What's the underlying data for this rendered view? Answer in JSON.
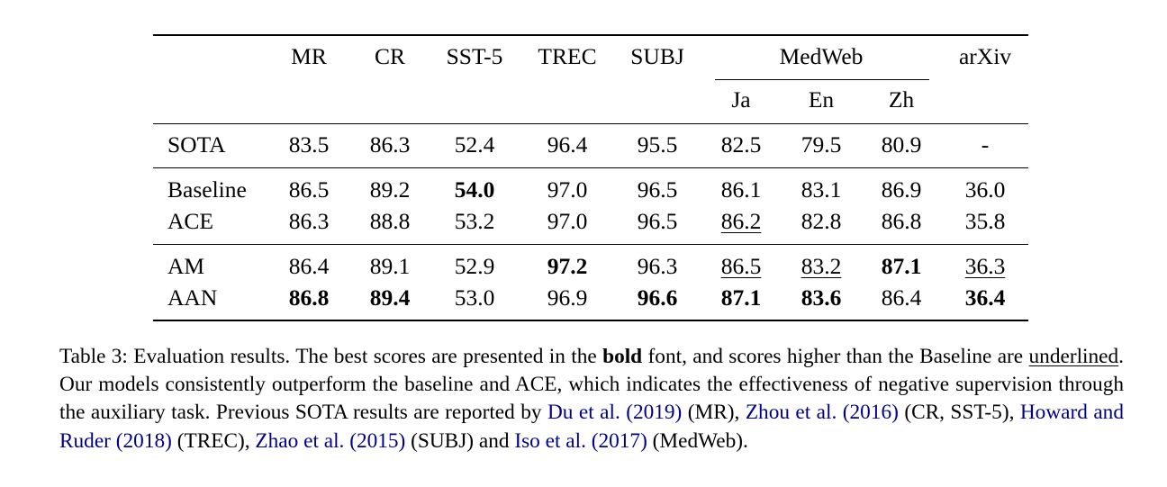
{
  "table": {
    "columns": [
      "MR",
      "CR",
      "SST-5",
      "TREC",
      "SUBJ",
      "MedWeb",
      "arXiv"
    ],
    "subcolumns": [
      "Ja",
      "En",
      "Zh"
    ],
    "rows": [
      {
        "label": "SOTA",
        "cells": [
          {
            "v": "83.5"
          },
          {
            "v": "86.3"
          },
          {
            "v": "52.4"
          },
          {
            "v": "96.4"
          },
          {
            "v": "95.5"
          },
          {
            "v": "82.5"
          },
          {
            "v": "79.5"
          },
          {
            "v": "80.9"
          },
          {
            "v": "-"
          }
        ]
      },
      {
        "label": "Baseline",
        "cells": [
          {
            "v": "86.5"
          },
          {
            "v": "89.2"
          },
          {
            "v": "54.0",
            "bold": true
          },
          {
            "v": "97.0"
          },
          {
            "v": "96.5"
          },
          {
            "v": "86.1"
          },
          {
            "v": "83.1"
          },
          {
            "v": "86.9"
          },
          {
            "v": "36.0"
          }
        ]
      },
      {
        "label": "ACE",
        "cells": [
          {
            "v": "86.3"
          },
          {
            "v": "88.8"
          },
          {
            "v": "53.2"
          },
          {
            "v": "97.0"
          },
          {
            "v": "96.5"
          },
          {
            "v": "86.2",
            "underline": true
          },
          {
            "v": "82.8"
          },
          {
            "v": "86.8"
          },
          {
            "v": "35.8"
          }
        ]
      },
      {
        "label": "AM",
        "cells": [
          {
            "v": "86.4"
          },
          {
            "v": "89.1"
          },
          {
            "v": "52.9"
          },
          {
            "v": "97.2",
            "bold": true
          },
          {
            "v": "96.3"
          },
          {
            "v": "86.5",
            "underline": true
          },
          {
            "v": "83.2",
            "underline": true
          },
          {
            "v": "87.1",
            "bold": true
          },
          {
            "v": "36.3",
            "underline": true
          }
        ]
      },
      {
        "label": "AAN",
        "cells": [
          {
            "v": "86.8",
            "bold": true
          },
          {
            "v": "89.4",
            "bold": true
          },
          {
            "v": "53.0"
          },
          {
            "v": "96.9"
          },
          {
            "v": "96.6",
            "bold": true
          },
          {
            "v": "87.1",
            "bold": true
          },
          {
            "v": "83.6",
            "bold": true
          },
          {
            "v": "86.4"
          },
          {
            "v": "36.4",
            "bold": true
          }
        ]
      }
    ]
  },
  "caption": {
    "t1": "Table 3: Evaluation results.  The best scores are presented in the ",
    "bold_word": "bold",
    "t2": " font, and scores higher than the Baseline are ",
    "underlined_word": "underlined",
    "t3": ". Our models consistently outperform the baseline and ACE, which indicates the effectiveness of negative supervision through the auxiliary task.  Previous SOTA results are reported by ",
    "cite1": "Du et al. (2019)",
    "t4": " (MR), ",
    "cite2": "Zhou et al. (2016)",
    "t5": " (CR, SST-5), ",
    "cite3": "Howard and Ruder (2018)",
    "t6": " (TREC), ",
    "cite4": "Zhao et al. (2015)",
    "t7": " (SUBJ) and ",
    "cite5": "Iso et al. (2017)",
    "t8": " (MedWeb)."
  },
  "colors": {
    "text": "#000000",
    "citation": "#00008b",
    "background": "#ffffff"
  }
}
